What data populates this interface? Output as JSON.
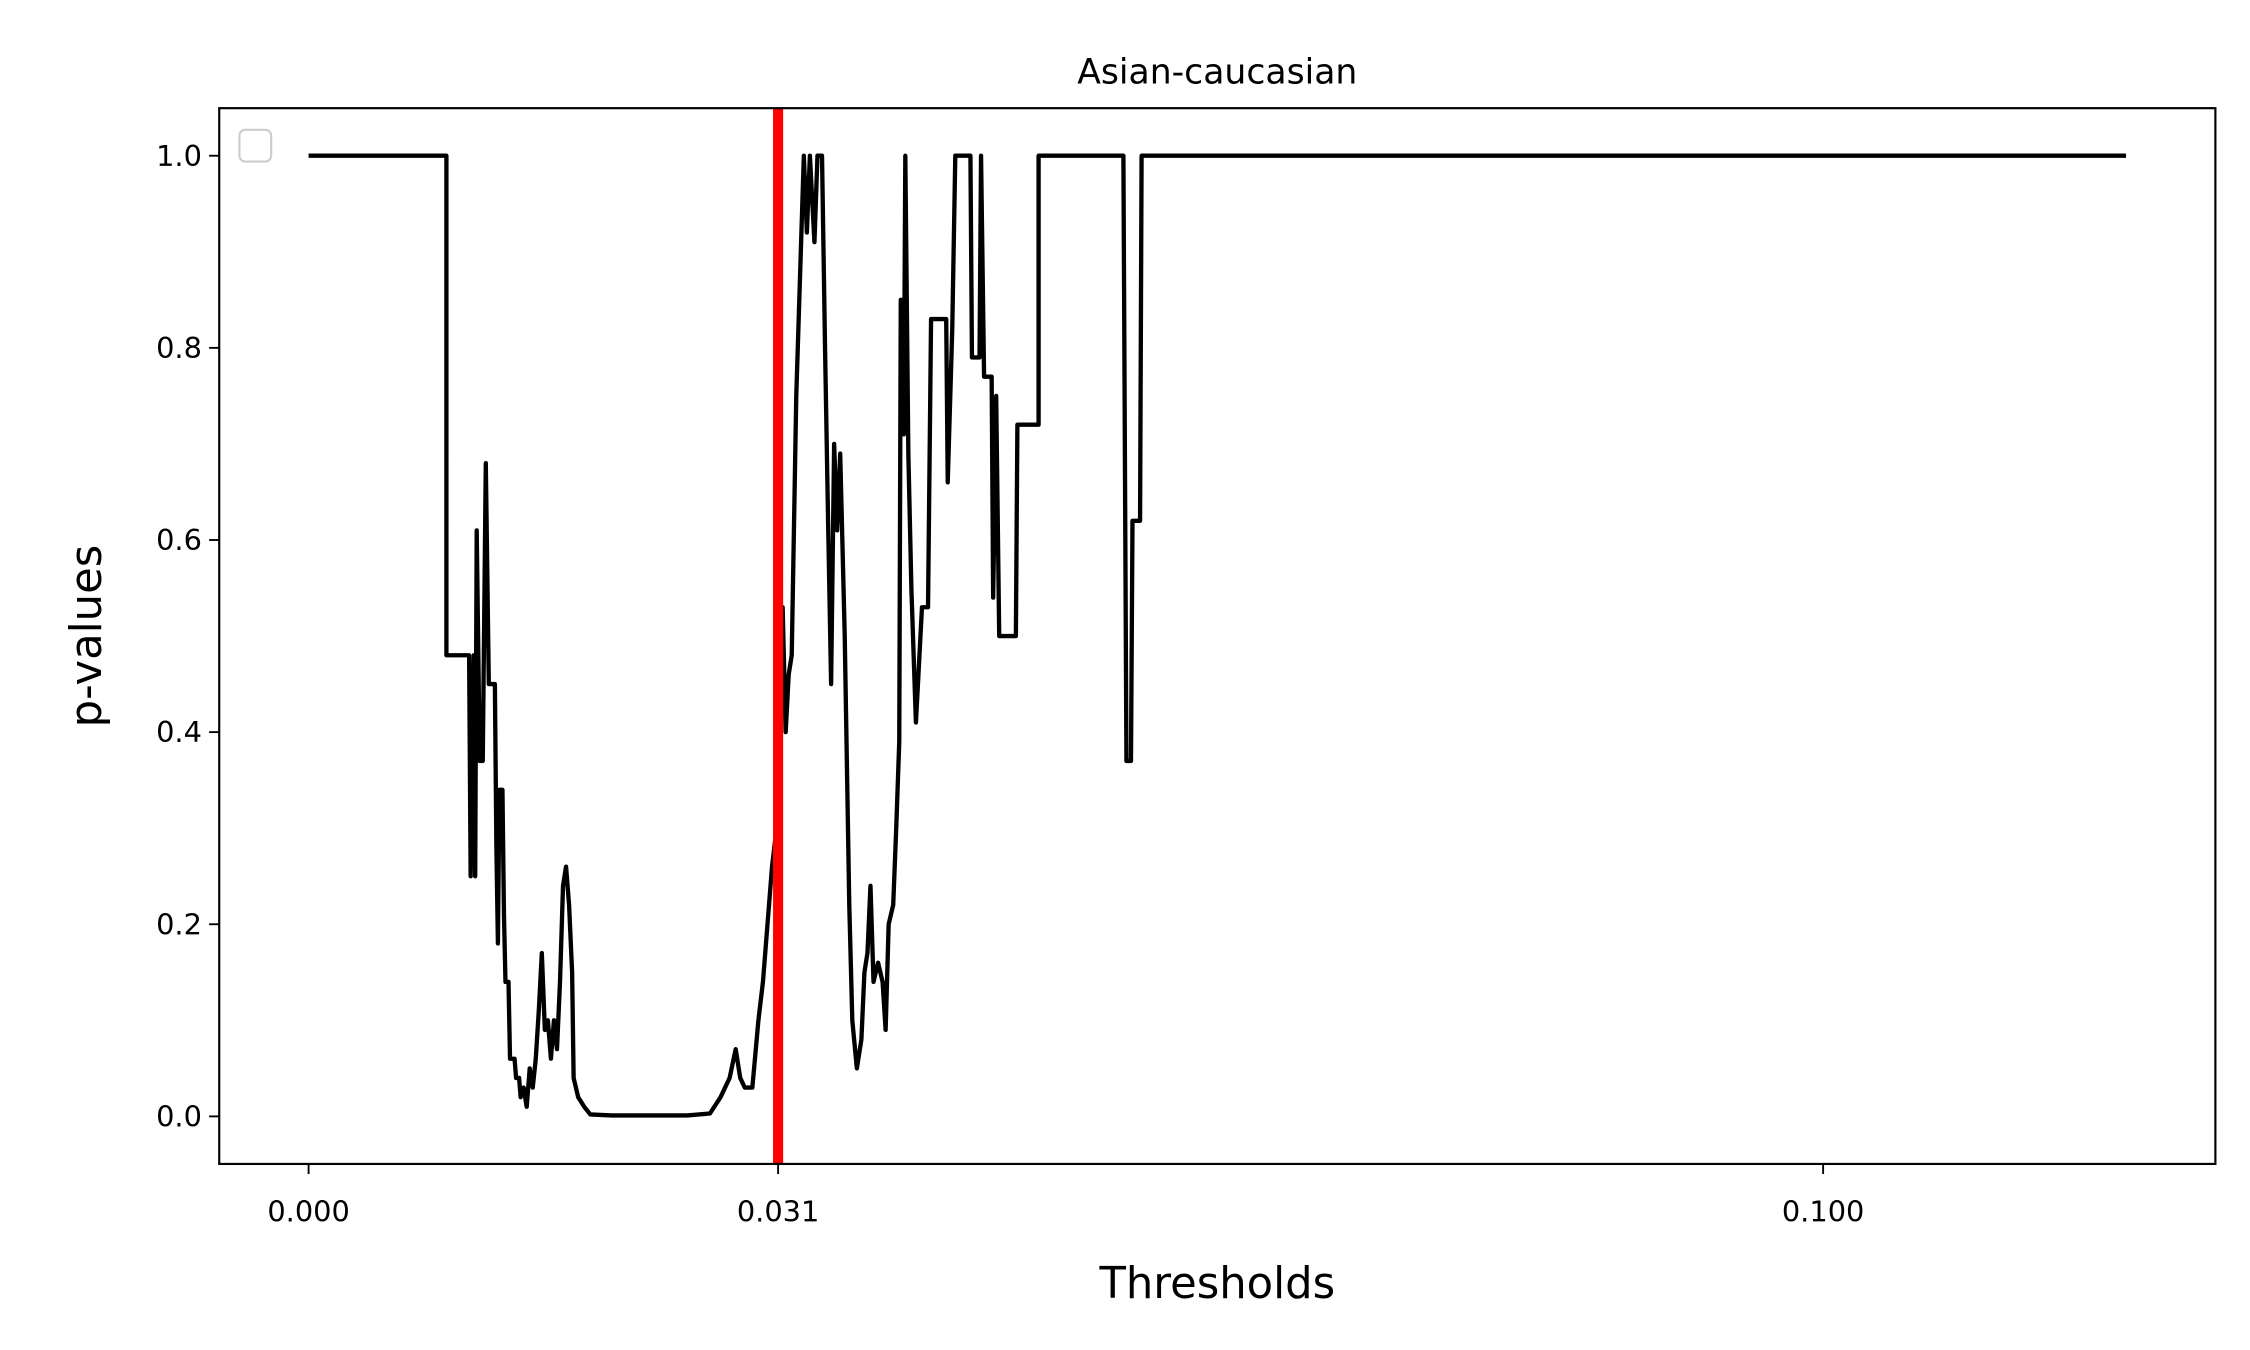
{
  "chart_data": {
    "type": "line",
    "title": "Asian-caucasian",
    "x_label": "Thresholds",
    "y_label": "p-values",
    "xlim": [
      -0.0059,
      0.1259
    ],
    "ylim": [
      -0.0495,
      1.0495
    ],
    "xticks": [
      {
        "value": 0,
        "label": "0.000"
      },
      {
        "value": 0.031,
        "label": "0.031"
      },
      {
        "value": 0.1,
        "label": "0.100"
      }
    ],
    "yticks": [
      {
        "value": 0,
        "label": "0.0"
      },
      {
        "value": 0.2,
        "label": "0.2"
      },
      {
        "value": 0.4,
        "label": "0.4"
      },
      {
        "value": 0.6,
        "label": "0.6"
      },
      {
        "value": 0.8,
        "label": "0.8"
      },
      {
        "value": 1,
        "label": "1.0"
      }
    ],
    "legend": "upper left",
    "vline": {
      "value": 0.031,
      "color": "#ff0000"
    },
    "series": [
      {
        "color": "#000000",
        "x": [
          0,
          0.0091,
          0.0091,
          0.0106,
          0.0107,
          0.0109,
          0.011,
          0.0111,
          0.0113,
          0.0115,
          0.0117,
          0.0119,
          0.0123,
          0.0124,
          0.0125,
          0.0126,
          0.0128,
          0.0129,
          0.013,
          0.0132,
          0.0133,
          0.0136,
          0.0137,
          0.0139,
          0.014,
          0.0142,
          0.0144,
          0.0146,
          0.0148,
          0.015,
          0.0152,
          0.0154,
          0.0156,
          0.0158,
          0.016,
          0.0162,
          0.0164,
          0.0166,
          0.0168,
          0.017,
          0.0172,
          0.0174,
          0.0175,
          0.0178,
          0.0182,
          0.0186,
          0.02,
          0.025,
          0.0265,
          0.0272,
          0.0278,
          0.0282,
          0.0285,
          0.0288,
          0.0293,
          0.0297,
          0.03,
          0.0303,
          0.0306,
          0.0309,
          0.0311,
          0.0313,
          0.0315,
          0.0317,
          0.0319,
          0.0322,
          0.0325,
          0.0327,
          0.0329,
          0.0331,
          0.0334,
          0.0336,
          0.0339,
          0.0341,
          0.0343,
          0.0345,
          0.0347,
          0.0349,
          0.0351,
          0.0354,
          0.0357,
          0.0359,
          0.0362,
          0.0365,
          0.0367,
          0.0369,
          0.0371,
          0.0373,
          0.0376,
          0.0379,
          0.0381,
          0.0383,
          0.0386,
          0.0388,
          0.039,
          0.0391,
          0.0393,
          0.0394,
          0.0396,
          0.0398,
          0.0401,
          0.0405,
          0.0409,
          0.0411,
          0.0421,
          0.0422,
          0.0425,
          0.0427,
          0.0437,
          0.0438,
          0.0443,
          0.0444,
          0.0446,
          0.0451,
          0.0452,
          0.0454,
          0.0456,
          0.0467,
          0.0468,
          0.0482,
          0.0482,
          0.0538,
          0.054,
          0.0543,
          0.0544,
          0.0549,
          0.055,
          0.12
        ],
        "values": [
          1,
          1,
          0.48,
          0.48,
          0.25,
          0.48,
          0.25,
          0.61,
          0.37,
          0.37,
          0.68,
          0.45,
          0.45,
          0.28,
          0.18,
          0.34,
          0.34,
          0.21,
          0.14,
          0.14,
          0.06,
          0.06,
          0.04,
          0.04,
          0.02,
          0.03,
          0.01,
          0.05,
          0.03,
          0.06,
          0.11,
          0.17,
          0.09,
          0.1,
          0.06,
          0.1,
          0.07,
          0.14,
          0.24,
          0.26,
          0.22,
          0.15,
          0.04,
          0.02,
          0.01,
          0.002,
          0.001,
          0.001,
          0.003,
          0.02,
          0.04,
          0.07,
          0.04,
          0.03,
          0.03,
          0.1,
          0.14,
          0.2,
          0.26,
          0.3,
          0.4,
          0.53,
          0.4,
          0.46,
          0.48,
          0.75,
          0.9,
          1,
          0.92,
          1,
          0.91,
          1,
          1,
          0.8,
          0.62,
          0.45,
          0.7,
          0.61,
          0.69,
          0.5,
          0.22,
          0.1,
          0.05,
          0.08,
          0.15,
          0.17,
          0.24,
          0.14,
          0.16,
          0.14,
          0.09,
          0.2,
          0.22,
          0.3,
          0.39,
          0.85,
          0.71,
          1,
          0.69,
          0.55,
          0.41,
          0.53,
          0.53,
          0.83,
          0.83,
          0.66,
          0.82,
          1,
          1,
          0.79,
          0.79,
          1,
          0.77,
          0.77,
          0.54,
          0.75,
          0.5,
          0.5,
          0.72,
          0.72,
          1,
          1,
          0.37,
          0.37,
          0.62,
          0.62,
          1,
          1
        ]
      }
    ]
  }
}
